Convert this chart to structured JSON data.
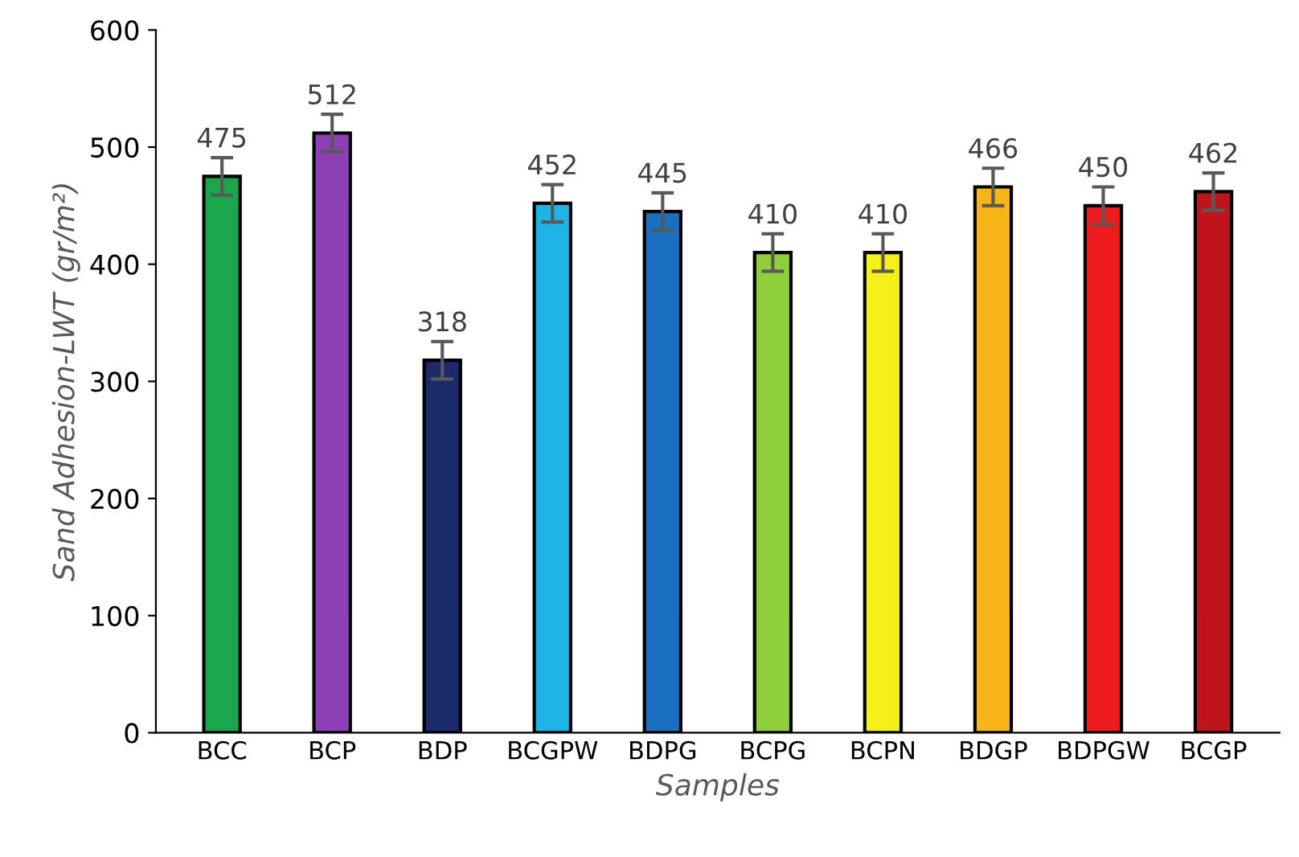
{
  "chart_data": {
    "type": "bar",
    "xlabel": "Samples",
    "ylabel": "Sand Adhesion-LWT (gr/m²)",
    "categories": [
      "BCC",
      "BCP",
      "BDP",
      "BCGPW",
      "BDPG",
      "BCPG",
      "BCPN",
      "BDGP",
      "BDPGW",
      "BCGP"
    ],
    "values": [
      475,
      512,
      318,
      452,
      445,
      410,
      410,
      466,
      450,
      462
    ],
    "errors": [
      16,
      16,
      16,
      16,
      16,
      16,
      16,
      16,
      16,
      16
    ],
    "colors": [
      "#1aa64a",
      "#8e3fb5",
      "#1b2a6b",
      "#1fb4e8",
      "#1a6fc0",
      "#8fcf3c",
      "#f5f01a",
      "#f7b416",
      "#ee1c1c",
      "#c0141c"
    ],
    "data_labels": true,
    "ylim": [
      0,
      600
    ],
    "yticks": [
      0,
      100,
      200,
      300,
      400,
      500,
      600
    ],
    "grid": false,
    "legend": false
  }
}
